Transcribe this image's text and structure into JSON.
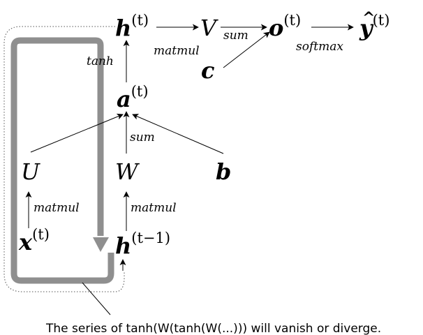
{
  "nodes": {
    "h_t": {
      "base": "h",
      "sup": "(t)"
    },
    "V": {
      "base": "V"
    },
    "o_t": {
      "base": "o",
      "sup": "(t)"
    },
    "yhat": {
      "base": "y",
      "hat": "^",
      "sup": "(t)"
    },
    "c": {
      "base": "c"
    },
    "a_t": {
      "base": "a",
      "sup": "(t)"
    },
    "U": {
      "base": "U"
    },
    "W": {
      "base": "W"
    },
    "b": {
      "base": "b"
    },
    "x_t": {
      "base": "x",
      "sup": "(t)"
    },
    "h_tm1": {
      "base": "h",
      "sup": "(t−1)"
    }
  },
  "edge_labels": {
    "h_to_V": "matmul",
    "V_to_o": "sum",
    "o_to_y": "softmax",
    "a_to_h": "tanh",
    "W_to_a": "sum",
    "x_to_U": "matmul",
    "h_to_W": "matmul"
  },
  "caption": "The series of tanh(W(tanh(W(...))) will vanish or diverge."
}
